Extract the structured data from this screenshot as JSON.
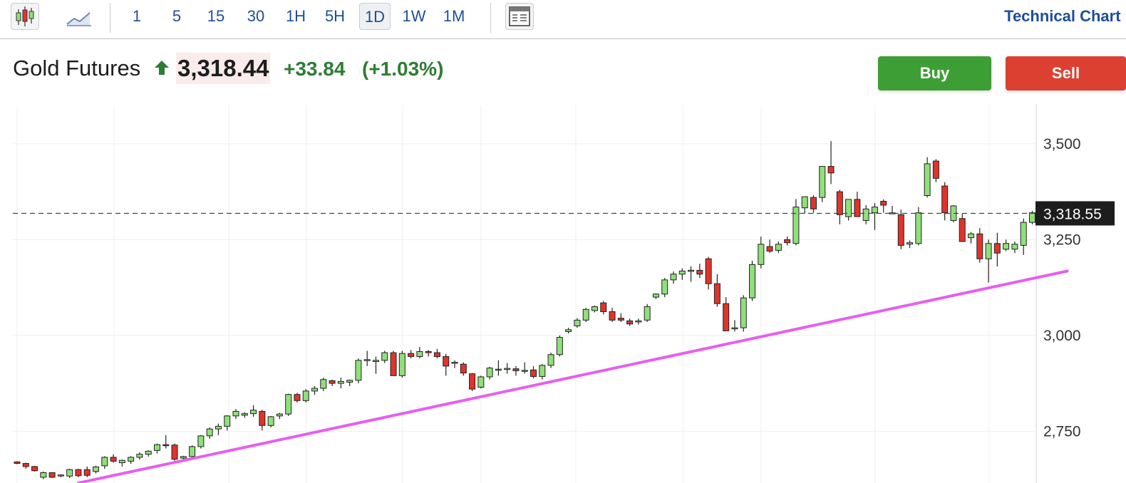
{
  "toolbar": {
    "chart_type_icons": [
      "candlestick-icon",
      "area-chart-icon"
    ],
    "intervals": [
      "1",
      "5",
      "15",
      "30",
      "1H",
      "5H",
      "1D",
      "1W",
      "1M"
    ],
    "active_interval": "1D",
    "layout_icon": "layout-icon",
    "technical_chart_label": "Technical Chart ›"
  },
  "quote": {
    "name": "Gold Futures",
    "direction_icon": "arrow-up-icon",
    "price": "3,318.44",
    "change": "+33.84",
    "change_pct": "(+1.03%)"
  },
  "actions": {
    "buy_label": "Buy",
    "sell_label": "Sell"
  },
  "colors": {
    "up": "#8fe07a",
    "down": "#e0342b",
    "trendline": "#e65ff0",
    "buy": "#3d9e35",
    "sell": "#dc4031",
    "positive_text": "#2e7d32",
    "link": "#1f4e9a"
  },
  "chart_data": {
    "type": "candlestick",
    "y_ticks": [
      "3,500",
      "3,250",
      "3,000",
      "2,750"
    ],
    "y_tick_values": [
      3500,
      3250,
      3000,
      2750
    ],
    "ylim": [
      2615,
      3615
    ],
    "last_price_label": "3,318.55",
    "last_price": 3318.55,
    "grid": true,
    "candles": [
      [
        2670,
        2672,
        2664,
        2666
      ],
      [
        2666,
        2668,
        2652,
        2658
      ],
      [
        2658,
        2660,
        2645,
        2647
      ],
      [
        2630,
        2645,
        2625,
        2642
      ],
      [
        2642,
        2643,
        2628,
        2630
      ],
      [
        2635,
        2638,
        2630,
        2636
      ],
      [
        2633,
        2652,
        2628,
        2650
      ],
      [
        2650,
        2652,
        2630,
        2634
      ],
      [
        2650,
        2658,
        2630,
        2635
      ],
      [
        2645,
        2660,
        2640,
        2657
      ],
      [
        2660,
        2685,
        2652,
        2682
      ],
      [
        2682,
        2690,
        2668,
        2672
      ],
      [
        2668,
        2676,
        2658,
        2674
      ],
      [
        2672,
        2685,
        2665,
        2682
      ],
      [
        2682,
        2695,
        2676,
        2690
      ],
      [
        2690,
        2700,
        2684,
        2698
      ],
      [
        2700,
        2718,
        2692,
        2715
      ],
      [
        2715,
        2740,
        2705,
        2714
      ],
      [
        2714,
        2718,
        2673,
        2677
      ],
      [
        2680,
        2686,
        2672,
        2684
      ],
      [
        2684,
        2713,
        2680,
        2710
      ],
      [
        2710,
        2740,
        2705,
        2738
      ],
      [
        2738,
        2760,
        2730,
        2756
      ],
      [
        2756,
        2770,
        2740,
        2763
      ],
      [
        2763,
        2792,
        2752,
        2790
      ],
      [
        2790,
        2808,
        2782,
        2802
      ],
      [
        2792,
        2800,
        2785,
        2796
      ],
      [
        2796,
        2818,
        2788,
        2805
      ],
      [
        2802,
        2806,
        2752,
        2765
      ],
      [
        2765,
        2790,
        2760,
        2788
      ],
      [
        2790,
        2798,
        2782,
        2795
      ],
      [
        2795,
        2848,
        2790,
        2846
      ],
      [
        2846,
        2850,
        2825,
        2830
      ],
      [
        2830,
        2860,
        2825,
        2855
      ],
      [
        2855,
        2868,
        2845,
        2862
      ],
      [
        2862,
        2890,
        2855,
        2885
      ],
      [
        2882,
        2885,
        2868,
        2875
      ],
      [
        2875,
        2890,
        2862,
        2880
      ],
      [
        2878,
        2885,
        2868,
        2883
      ],
      [
        2883,
        2940,
        2875,
        2935
      ],
      [
        2935,
        2960,
        2920,
        2937
      ],
      [
        2932,
        2945,
        2900,
        2935
      ],
      [
        2935,
        2960,
        2928,
        2955
      ],
      [
        2955,
        2960,
        2900,
        2895
      ],
      [
        2895,
        2960,
        2890,
        2953
      ],
      [
        2953,
        2962,
        2940,
        2945
      ],
      [
        2945,
        2970,
        2940,
        2958
      ],
      [
        2958,
        2962,
        2945,
        2955
      ],
      [
        2955,
        2965,
        2940,
        2945
      ],
      [
        2945,
        2952,
        2895,
        2920
      ],
      [
        2928,
        2935,
        2915,
        2930
      ],
      [
        2925,
        2930,
        2895,
        2902
      ],
      [
        2900,
        2902,
        2855,
        2860
      ],
      [
        2865,
        2895,
        2862,
        2892
      ],
      [
        2892,
        2918,
        2885,
        2915
      ],
      [
        2910,
        2935,
        2895,
        2912
      ],
      [
        2912,
        2928,
        2900,
        2914
      ],
      [
        2913,
        2920,
        2895,
        2908
      ],
      [
        2908,
        2930,
        2900,
        2909
      ],
      [
        2910,
        2920,
        2888,
        2893
      ],
      [
        2893,
        2925,
        2885,
        2922
      ],
      [
        2922,
        2955,
        2915,
        2950
      ],
      [
        2950,
        3000,
        2945,
        2995
      ],
      [
        3010,
        3020,
        3005,
        3015
      ],
      [
        3025,
        3045,
        3020,
        3040
      ],
      [
        3040,
        3072,
        3035,
        3068
      ],
      [
        3065,
        3078,
        3060,
        3075
      ],
      [
        3085,
        3090,
        3055,
        3062
      ],
      [
        3062,
        3072,
        3035,
        3040
      ],
      [
        3045,
        3058,
        3035,
        3040
      ],
      [
        3038,
        3044,
        3025,
        3030
      ],
      [
        3036,
        3044,
        3028,
        3038
      ],
      [
        3040,
        3082,
        3035,
        3075
      ],
      [
        3100,
        3110,
        3095,
        3108
      ],
      [
        3108,
        3150,
        3100,
        3145
      ],
      [
        3145,
        3167,
        3135,
        3160
      ],
      [
        3160,
        3175,
        3145,
        3168
      ],
      [
        3168,
        3180,
        3140,
        3170
      ],
      [
        3170,
        3187,
        3150,
        3160
      ],
      [
        3200,
        3205,
        3120,
        3135
      ],
      [
        3135,
        3160,
        3075,
        3083
      ],
      [
        3083,
        3100,
        3012,
        3012
      ],
      [
        3018,
        3040,
        3010,
        3020
      ],
      [
        3020,
        3105,
        3010,
        3098
      ],
      [
        3098,
        3195,
        3090,
        3185
      ],
      [
        3185,
        3258,
        3175,
        3238
      ],
      [
        3232,
        3250,
        3215,
        3220
      ],
      [
        3222,
        3245,
        3215,
        3238
      ],
      [
        3250,
        3258,
        3235,
        3242
      ],
      [
        3240,
        3356,
        3235,
        3335
      ],
      [
        3333,
        3360,
        3318,
        3362
      ],
      [
        3360,
        3366,
        3320,
        3330
      ],
      [
        3360,
        3442,
        3348,
        3441
      ],
      [
        3441,
        3507,
        3395,
        3424
      ],
      [
        3375,
        3380,
        3290,
        3315
      ],
      [
        3310,
        3345,
        3300,
        3355
      ],
      [
        3355,
        3375,
        3310,
        3310
      ],
      [
        3300,
        3340,
        3290,
        3330
      ],
      [
        3320,
        3345,
        3275,
        3335
      ],
      [
        3350,
        3355,
        3320,
        3340
      ],
      [
        3320,
        3338,
        3318,
        3320
      ],
      [
        3315,
        3328,
        3225,
        3235
      ],
      [
        3238,
        3248,
        3228,
        3242
      ],
      [
        3240,
        3335,
        3235,
        3320
      ],
      [
        3365,
        3465,
        3360,
        3448
      ],
      [
        3455,
        3460,
        3400,
        3410
      ],
      [
        3390,
        3400,
        3300,
        3320
      ],
      [
        3300,
        3340,
        3295,
        3338
      ],
      [
        3305,
        3318,
        3245,
        3245
      ],
      [
        3255,
        3270,
        3240,
        3265
      ],
      [
        3265,
        3280,
        3190,
        3200
      ],
      [
        3200,
        3250,
        3138,
        3240
      ],
      [
        3240,
        3268,
        3180,
        3215
      ],
      [
        3225,
        3250,
        3220,
        3240
      ],
      [
        3225,
        3245,
        3215,
        3238
      ],
      [
        3235,
        3305,
        3210,
        3295
      ],
      [
        3295,
        3325,
        3290,
        3320
      ]
    ],
    "trendline": {
      "start": {
        "index": 7,
        "price": 2615
      },
      "end": {
        "index": 120,
        "price": 3168
      }
    }
  }
}
